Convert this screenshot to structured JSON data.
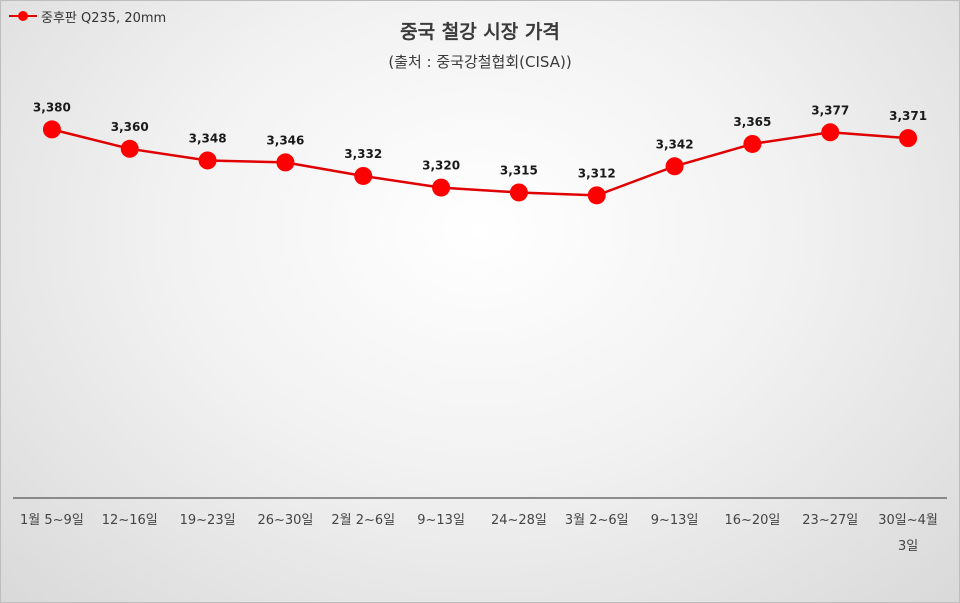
{
  "chart_data": {
    "type": "line",
    "title": "중국 철강 시장 가격",
    "subtitle": "(출처 : 중국강철협회(CISA))",
    "categories": [
      "1월 5~9일",
      "12~16일",
      "19~23일",
      "26~30일",
      "2월 2~6일",
      "9~13일",
      "24~28일",
      "3월 2~6일",
      "9~13일",
      "16~20일",
      "23~27일",
      "30일~4월 3일"
    ],
    "categories_display": [
      [
        "1월 5~9일"
      ],
      [
        "12~16일"
      ],
      [
        "19~23일"
      ],
      [
        "26~30일"
      ],
      [
        "2월 2~6일"
      ],
      [
        "9~13일"
      ],
      [
        "24~28일"
      ],
      [
        "3월 2~6일"
      ],
      [
        "9~13일"
      ],
      [
        "16~20일"
      ],
      [
        "23~27일"
      ],
      [
        "30일~4월",
        "3일"
      ]
    ],
    "series": [
      {
        "name": "중후판 Q235, 20mm",
        "color": "#ff0000",
        "line_color": "#e00000",
        "values": [
          3380,
          3360,
          3348,
          3346,
          3332,
          3320,
          3315,
          3312,
          3342,
          3365,
          3377,
          3371
        ],
        "labels": [
          "3,380",
          "3,360",
          "3,348",
          "3,346",
          "3,332",
          "3,320",
          "3,315",
          "3,312",
          "3,342",
          "3,365",
          "3,377",
          "3,371"
        ]
      }
    ],
    "ylim": [
      3000,
      3400
    ],
    "legend": "top-left",
    "grid": false
  }
}
